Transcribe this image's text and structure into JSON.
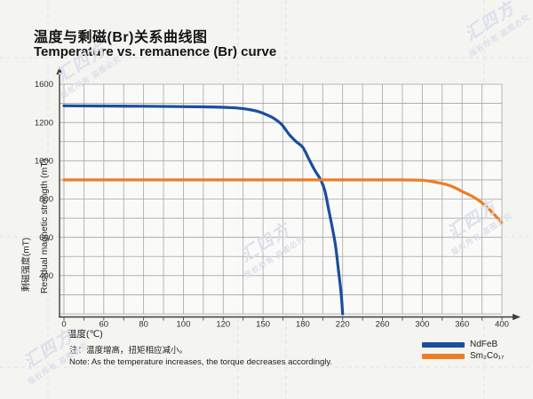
{
  "title": {
    "zh": "温度与剩磁(Br)关系曲线图",
    "en": "Temperature vs. remanence (Br) curve"
  },
  "note": {
    "zh": "注：温度增高，扭矩相应减小。",
    "en": "Note: As the temperature increases, the torque decreases accordingly."
  },
  "watermark": {
    "logo": "汇四方",
    "subtext": "版权所有 盗图必究"
  },
  "chart_data": {
    "type": "line",
    "title": "Temperature vs. remanence (Br) curve",
    "xlabel": "温度(℃)",
    "ylabel_zh": "剩磁强度(mT)",
    "ylabel_en": "Residual magnetic strength (mT)",
    "x_ticks": [
      0,
      60,
      80,
      100,
      120,
      150,
      180,
      220,
      260,
      300,
      360,
      400
    ],
    "y_ticks": [
      1600,
      1200,
      1000,
      800,
      600,
      400,
      0
    ],
    "minor_gridlines_between_ticks": true,
    "grid": true,
    "legend_position": "bottom-right",
    "axis_note": "tick labels are evenly spaced (stylized non-linear scale)",
    "series": [
      {
        "name": "NdFeB",
        "color": "#1b4e9c",
        "points": [
          [
            0,
            1375
          ],
          [
            40,
            1373
          ],
          [
            80,
            1370
          ],
          [
            110,
            1364
          ],
          [
            125,
            1356
          ],
          [
            135,
            1345
          ],
          [
            145,
            1320
          ],
          [
            152,
            1285
          ],
          [
            158,
            1245
          ],
          [
            164,
            1190
          ],
          [
            170,
            1135
          ],
          [
            175,
            1100
          ],
          [
            180,
            1070
          ],
          [
            186,
            1010
          ],
          [
            192,
            950
          ],
          [
            198,
            900
          ],
          [
            202,
            845
          ],
          [
            206,
            745
          ],
          [
            210,
            640
          ],
          [
            213,
            550
          ],
          [
            216,
            420
          ],
          [
            218,
            260
          ],
          [
            219,
            150
          ],
          [
            220,
            0
          ]
        ]
      },
      {
        "name": "Sm₂Co₁₇",
        "color": "#ee7d25",
        "points": [
          [
            0,
            900
          ],
          [
            40,
            900
          ],
          [
            80,
            900
          ],
          [
            120,
            900
          ],
          [
            160,
            900
          ],
          [
            200,
            900
          ],
          [
            240,
            900
          ],
          [
            280,
            900
          ],
          [
            300,
            898
          ],
          [
            310,
            894
          ],
          [
            320,
            888
          ],
          [
            330,
            881
          ],
          [
            340,
            872
          ],
          [
            350,
            858
          ],
          [
            360,
            840
          ],
          [
            370,
            815
          ],
          [
            380,
            780
          ],
          [
            390,
            732
          ],
          [
            400,
            676
          ]
        ]
      }
    ]
  }
}
